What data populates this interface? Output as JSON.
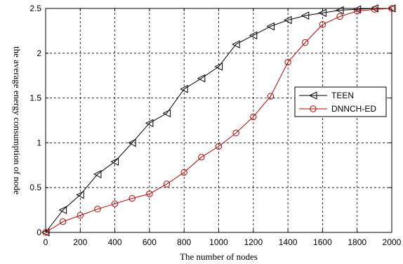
{
  "chart_data": {
    "type": "line",
    "title": "",
    "xlabel": "The number of nodes",
    "ylabel": "the average energy consumption of node",
    "xlim": [
      0,
      2000
    ],
    "ylim": [
      0,
      2.5
    ],
    "xticks": [
      0,
      200,
      400,
      600,
      800,
      1000,
      1200,
      1400,
      1600,
      1800,
      2000
    ],
    "yticks": [
      0,
      0.5,
      1,
      1.5,
      2,
      2.5
    ],
    "ytick_labels": [
      "0",
      "0.5",
      "1",
      "1.5",
      "2",
      "2.5"
    ],
    "grid": true,
    "legend_position": "middle-right",
    "x": [
      0,
      100,
      200,
      300,
      400,
      500,
      600,
      700,
      800,
      900,
      1000,
      1100,
      1200,
      1300,
      1400,
      1500,
      1600,
      1700,
      1800,
      1900,
      2000
    ],
    "series": [
      {
        "name": "TEEN",
        "color": "#000000",
        "marker": "triangle-left",
        "values": [
          0,
          0.25,
          0.42,
          0.65,
          0.79,
          1.0,
          1.22,
          1.33,
          1.6,
          1.72,
          1.85,
          2.1,
          2.2,
          2.3,
          2.37,
          2.42,
          2.45,
          2.48,
          2.49,
          2.5,
          2.5
        ]
      },
      {
        "name": "DNNCH-ED",
        "color": "#c00000",
        "marker": "circle",
        "values": [
          0,
          0.12,
          0.19,
          0.26,
          0.32,
          0.38,
          0.43,
          0.54,
          0.67,
          0.84,
          0.96,
          1.11,
          1.29,
          1.52,
          1.9,
          2.12,
          2.32,
          2.41,
          2.47,
          2.49,
          2.5
        ]
      }
    ]
  }
}
